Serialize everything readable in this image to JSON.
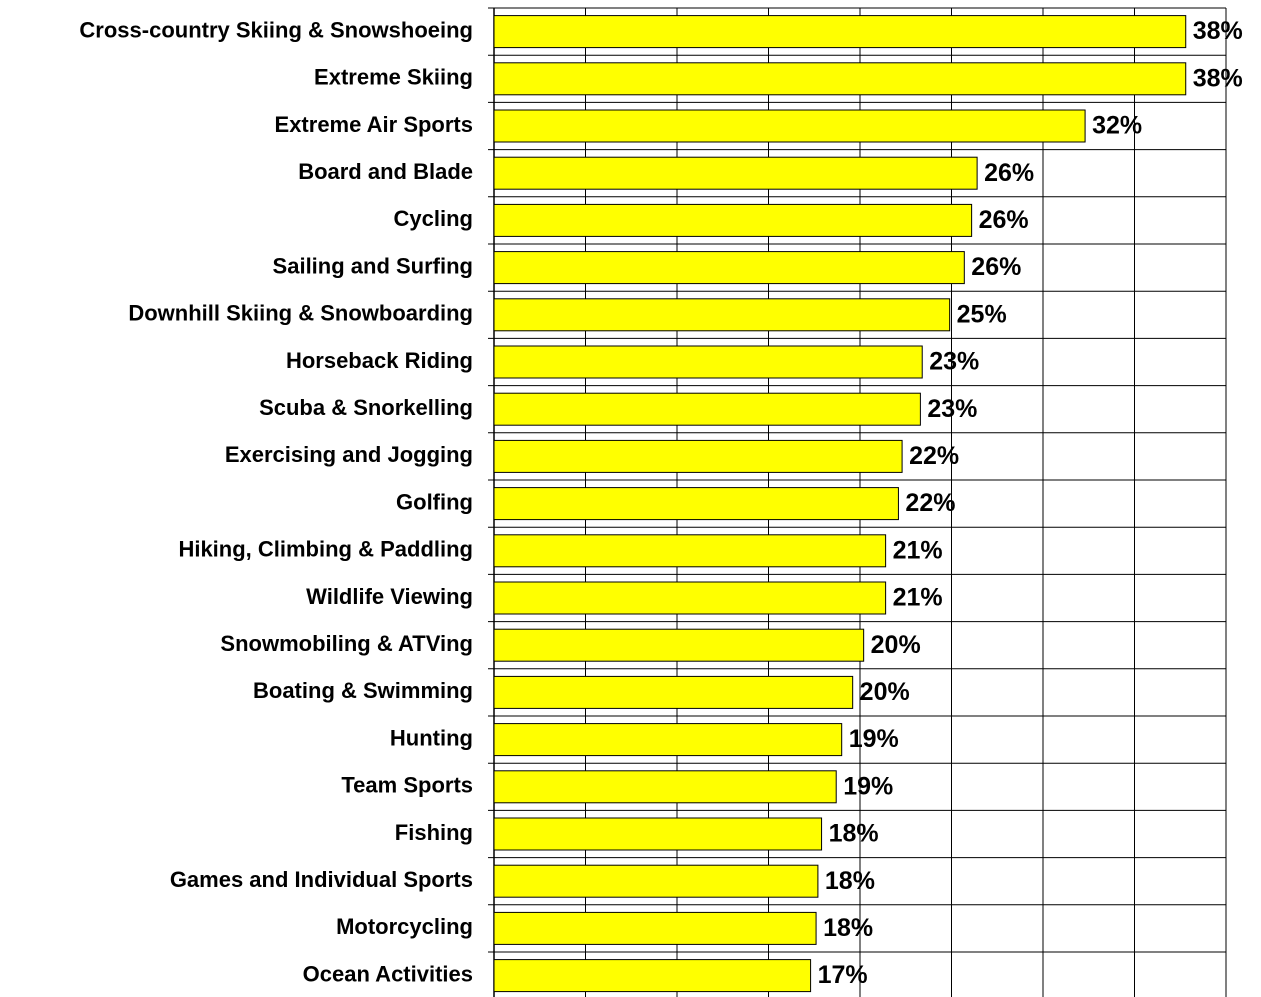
{
  "chart_data": {
    "type": "bar",
    "orientation": "horizontal",
    "categories": [
      "Cross-country Skiing & Snowshoeing",
      "Extreme Skiing",
      "Extreme Air Sports",
      "Board and Blade",
      "Cycling",
      "Sailing and Surfing",
      "Downhill Skiing & Snowboarding",
      "Horseback Riding",
      "Scuba & Snorkelling",
      "Exercising and Jogging",
      "Golfing",
      "Hiking, Climbing & Paddling",
      "Wildlife Viewing",
      "Snowmobiling & ATVing",
      "Boating & Swimming",
      "Hunting",
      "Team Sports",
      "Fishing",
      "Games and Individual Sports",
      "Motorcycling",
      "Ocean Activities"
    ],
    "values": [
      37.8,
      37.8,
      32.3,
      26.4,
      26.1,
      25.7,
      24.9,
      23.4,
      23.3,
      22.3,
      22.1,
      21.4,
      21.4,
      20.2,
      19.6,
      19.0,
      18.7,
      17.9,
      17.7,
      17.6,
      17.3
    ],
    "value_labels": [
      "38%",
      "38%",
      "32%",
      "26%",
      "26%",
      "26%",
      "25%",
      "23%",
      "23%",
      "22%",
      "22%",
      "21%",
      "21%",
      "20%",
      "20%",
      "19%",
      "19%",
      "18%",
      "18%",
      "18%",
      "17%"
    ],
    "color": "#ffff00",
    "xlim": [
      0,
      40
    ],
    "xticks": [
      0,
      5,
      10,
      15,
      20,
      25,
      30,
      35,
      40
    ],
    "grid": true
  }
}
